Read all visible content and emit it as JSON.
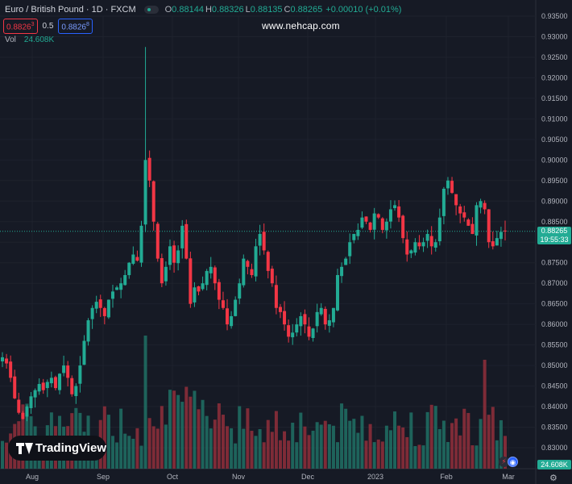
{
  "header": {
    "symbol_title": "Euro / British Pound · 1D · FXCM",
    "open_label": "O",
    "open_value": "0.88144",
    "high_label": "H",
    "high_value": "0.88326",
    "low_label": "L",
    "low_value": "0.88135",
    "close_label": "C",
    "close_value": "0.88265",
    "change": "+0.00010 (+0.01%)"
  },
  "trade": {
    "sell_price": "0.8826",
    "sell_sup": "3",
    "spread": "0.5",
    "buy_price": "0.8826",
    "buy_sup": "8"
  },
  "volume": {
    "label": "Vol",
    "value": "24.608K"
  },
  "watermark": "www.nehcap.com",
  "brand": "TradingView",
  "price_axis": {
    "ticks": [
      "0.93500",
      "0.93000",
      "0.92500",
      "0.92000",
      "0.91500",
      "0.91000",
      "0.90500",
      "0.90000",
      "0.89500",
      "0.89000",
      "0.88500",
      "0.88000",
      "0.87500",
      "0.87000",
      "0.86500",
      "0.86000",
      "0.85500",
      "0.85000",
      "0.84500",
      "0.84000",
      "0.83500",
      "0.83000"
    ],
    "last_price": "0.88265",
    "countdown": "19:55:33",
    "volume_tag": "24.608K"
  },
  "time_axis": [
    "Aug",
    "Sep",
    "Oct",
    "Nov",
    "Dec",
    "2023",
    "Feb",
    "Mar"
  ],
  "colors": {
    "up": "#22ab94",
    "down": "#f23645",
    "background": "#161a25",
    "text": "#b2b5be"
  },
  "chart_data": {
    "type": "candlestick",
    "x_labels": [
      "Aug",
      "Sep",
      "Oct",
      "Nov",
      "Dec",
      "2023",
      "Feb",
      "Mar"
    ],
    "ylim": [
      0.83,
      0.935
    ],
    "closes": [
      0.852,
      0.8505,
      0.847,
      0.842,
      0.8385,
      0.837,
      0.84,
      0.8425,
      0.844,
      0.8455,
      0.844,
      0.846,
      0.847,
      0.8445,
      0.848,
      0.85,
      0.847,
      0.843,
      0.845,
      0.85,
      0.856,
      0.861,
      0.864,
      0.8655,
      0.864,
      0.862,
      0.866,
      0.868,
      0.869,
      0.87,
      0.872,
      0.875,
      0.877,
      0.8755,
      0.884,
      0.9,
      0.895,
      0.885,
      0.876,
      0.87,
      0.874,
      0.879,
      0.875,
      0.878,
      0.884,
      0.876,
      0.865,
      0.869,
      0.868,
      0.87,
      0.873,
      0.874,
      0.87,
      0.866,
      0.864,
      0.86,
      0.862,
      0.866,
      0.87,
      0.876,
      0.874,
      0.872,
      0.879,
      0.882,
      0.878,
      0.873,
      0.87,
      0.864,
      0.863,
      0.86,
      0.857,
      0.858,
      0.86,
      0.862,
      0.86,
      0.857,
      0.859,
      0.863,
      0.864,
      0.86,
      0.861,
      0.864,
      0.872,
      0.874,
      0.876,
      0.88,
      0.882,
      0.883,
      0.886,
      0.885,
      0.883,
      0.887,
      0.886,
      0.883,
      0.885,
      0.888,
      0.889,
      0.886,
      0.881,
      0.877,
      0.878,
      0.88,
      0.879,
      0.88,
      0.882,
      0.879,
      0.88,
      0.886,
      0.893,
      0.895,
      0.892,
      0.889,
      0.887,
      0.886,
      0.884,
      0.882,
      0.889,
      0.89,
      0.888,
      0.88,
      0.879,
      0.881,
      0.8825,
      0.88265
    ],
    "volume_max": "approx 150 bars"
  }
}
